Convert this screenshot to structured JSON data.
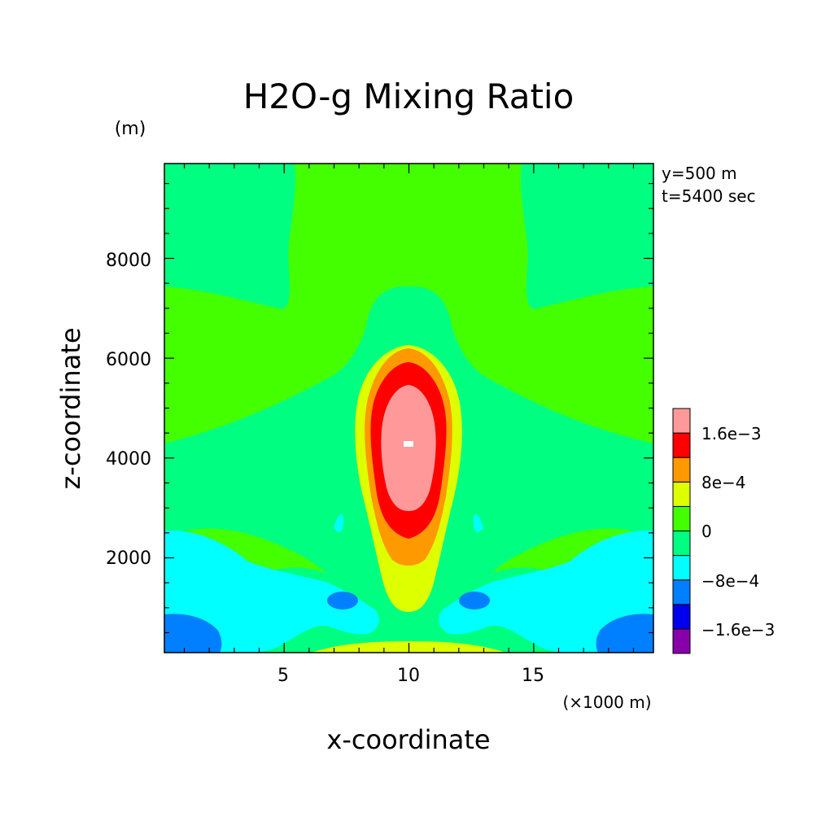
{
  "chart_data": {
    "type": "heatmap",
    "title": "H2O-g Mixing Ratio",
    "xlabel": "x-coordinate",
    "ylabel": "z-coordinate",
    "x_unit": "(×1000 m)",
    "y_unit": "(m)",
    "annotations": [
      "y=500 m",
      "t=5400 sec"
    ],
    "xlim": [
      0.2,
      19.8
    ],
    "ylim": [
      100,
      9900
    ],
    "x_ticks": [
      5,
      10,
      15
    ],
    "y_ticks": [
      2000,
      4000,
      6000,
      8000
    ],
    "colorbar": {
      "levels": [
        -0.0024,
        -0.0016,
        -0.0008,
        0,
        0.0008,
        0.0016,
        0.0024
      ],
      "tick_labels": [
        "−1.6e−3",
        "−8e−4",
        "0",
        "8e−4",
        "1.6e−3"
      ],
      "colors": [
        "#8800aa",
        "#0000ee",
        "#0080ff",
        "#00ffff",
        "#00ff80",
        "#44ff00",
        "#ddff00",
        "#ff9900",
        "#ff0000",
        "#ff9999"
      ]
    },
    "regions": [
      {
        "level": "1.6e-3 to 2.4e-3",
        "color": "#ff9999",
        "x": [
          9.0,
          9.6,
          10.6,
          11.2,
          10.5,
          9.4
        ],
        "z": [
          4200,
          5100,
          5200,
          4000,
          2900,
          3000
        ]
      },
      {
        "level": "1.2e-3 to 1.6e-3",
        "color": "#ff0000",
        "x": [
          8.6,
          9.6,
          10.7,
          11.4,
          10.5,
          9.1
        ],
        "z": [
          4800,
          5700,
          5500,
          3500,
          2400,
          2700
        ]
      },
      {
        "level": "8e-4 to 1.2e-3",
        "color": "#ff9900",
        "x": [
          8.4,
          9.9,
          11.6,
          10.8,
          9.2
        ],
        "z": [
          5000,
          6200,
          4200,
          1800,
          2000
        ]
      },
      {
        "level": "0 to 8e-4",
        "color": "#ddff00",
        "x": [
          8.1,
          10.0,
          11.9,
          10.0
        ],
        "z": [
          4500,
          6300,
          4000,
          800
        ]
      },
      {
        "level": "-8e-4 to 0",
        "color": "#00ffff",
        "x": [
          0.2,
          3.5,
          6.5,
          0.2
        ],
        "z": [
          2500,
          2100,
          1000,
          300
        ]
      },
      {
        "level": "-1.6e-3 to -8e-4",
        "color": "#0080ff",
        "x": [
          0.2,
          2.2,
          0.2
        ],
        "z": [
          800,
          300,
          100
        ]
      }
    ]
  }
}
